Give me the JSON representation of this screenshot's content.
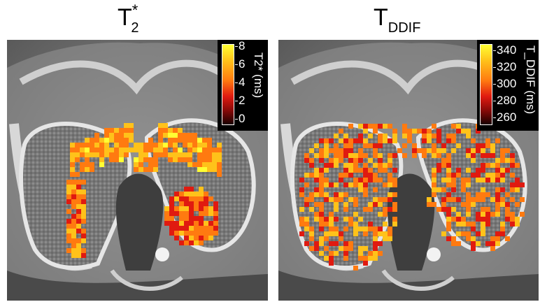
{
  "panels": [
    {
      "title_main": "T",
      "title_sup": "*",
      "title_sub": "2",
      "colorbar": {
        "label": "T2* (ms)",
        "ticks": [
          "8",
          "6",
          "4",
          "2",
          "0"
        ],
        "range": [
          0,
          8
        ]
      }
    },
    {
      "title_main": "T",
      "title_sub": "DDIF",
      "colorbar": {
        "label": "T_DDIF (ms)",
        "ticks": [
          "340",
          "320",
          "300",
          "280",
          "260"
        ],
        "range": [
          255,
          345
        ]
      }
    }
  ],
  "colors": {
    "colormap": [
      "#1a0000",
      "#8a0a08",
      "#e01a10",
      "#ff7a10",
      "#ffc21a",
      "#ffff33"
    ]
  }
}
